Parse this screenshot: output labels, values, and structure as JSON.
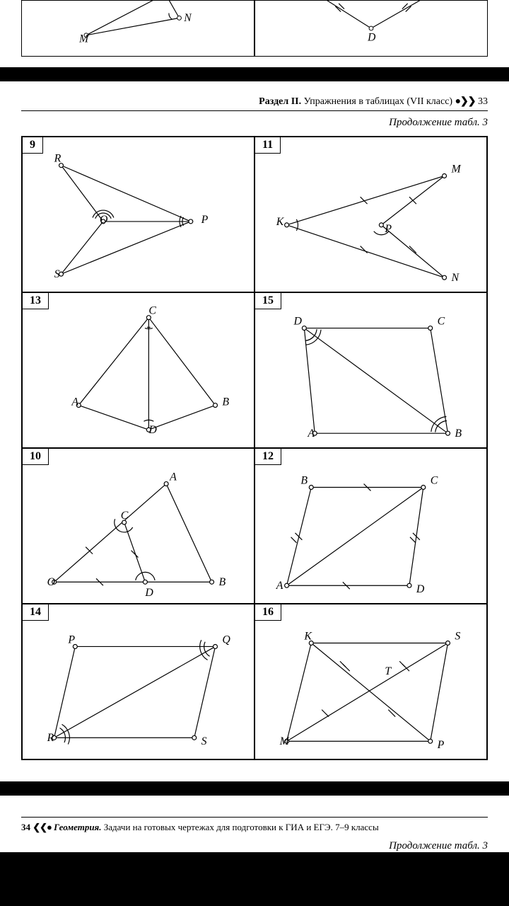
{
  "topFragment": {
    "left": {
      "labels": {
        "M": [
          80,
          55
        ],
        "N": [
          235,
          30
        ]
      }
    },
    "right": {
      "labels": {
        "D": [
          165,
          55
        ]
      }
    }
  },
  "header": {
    "section_bold": "Раздел II.",
    "section_rest": " Упражнения в таблицах (VII класс) ",
    "dots": "●❯❯",
    "page": "33"
  },
  "subheader": "Продолжение табл. 3",
  "cells": [
    {
      "num": "9",
      "labels": {
        "R": [
          45,
          35
        ],
        "O": [
          110,
          122
        ],
        "P": [
          255,
          122
        ],
        "S": [
          45,
          200
        ]
      },
      "lines": [
        [
          55,
          40,
          240,
          120
        ],
        [
          240,
          120,
          55,
          195
        ],
        [
          55,
          40,
          115,
          120
        ],
        [
          115,
          120,
          55,
          195
        ],
        [
          115,
          120,
          240,
          120
        ]
      ],
      "arcs": [
        [
          115,
          120,
          12,
          200,
          340
        ],
        [
          115,
          120,
          16,
          200,
          340
        ],
        [
          240,
          120,
          12,
          150,
          210
        ],
        [
          240,
          120,
          16,
          150,
          210
        ]
      ]
    },
    {
      "num": "13",
      "labels": {
        "C": [
          180,
          30
        ],
        "A": [
          70,
          160
        ],
        "B": [
          285,
          160
        ],
        "D": [
          180,
          200
        ]
      },
      "lines": [
        [
          180,
          35,
          80,
          160
        ],
        [
          80,
          160,
          180,
          195
        ],
        [
          180,
          195,
          275,
          160
        ],
        [
          275,
          160,
          180,
          35
        ],
        [
          180,
          35,
          180,
          195
        ]
      ],
      "arcs": [
        [
          180,
          35,
          16,
          70,
          110
        ],
        [
          180,
          195,
          14,
          240,
          300
        ],
        [
          180,
          35,
          14,
          80,
          96
        ],
        [
          180,
          35,
          14,
          84,
          100
        ]
      ]
    },
    {
      "num": "10",
      "labels": {
        "A": [
          210,
          45
        ],
        "C": [
          140,
          100
        ],
        "O": [
          35,
          195
        ],
        "D": [
          175,
          210
        ],
        "B": [
          280,
          195
        ]
      },
      "lines": [
        [
          45,
          190,
          205,
          50
        ],
        [
          205,
          50,
          270,
          190
        ],
        [
          45,
          190,
          270,
          190
        ],
        [
          145,
          105,
          175,
          190
        ]
      ],
      "arcs": [
        [
          145,
          105,
          14,
          30,
          200
        ],
        [
          175,
          190,
          14,
          190,
          350
        ]
      ],
      "ticks": [
        [
          95,
          145,
          10
        ],
        [
          110,
          190,
          10
        ],
        [
          160,
          150,
          10
        ]
      ]
    },
    {
      "num": "14",
      "labels": {
        "P": [
          65,
          55
        ],
        "Q": [
          285,
          55
        ],
        "R": [
          35,
          195
        ],
        "S": [
          255,
          200
        ]
      },
      "lines": [
        [
          75,
          60,
          275,
          60
        ],
        [
          275,
          60,
          245,
          190
        ],
        [
          245,
          190,
          45,
          190
        ],
        [
          45,
          190,
          75,
          60
        ],
        [
          45,
          190,
          275,
          60
        ]
      ],
      "arcs": [
        [
          45,
          190,
          16,
          300,
          25
        ],
        [
          45,
          190,
          22,
          300,
          25
        ],
        [
          275,
          60,
          16,
          120,
          205
        ],
        [
          275,
          60,
          22,
          120,
          205
        ]
      ]
    },
    {
      "num": "11",
      "labels": {
        "K": [
          30,
          125
        ],
        "M": [
          280,
          50
        ],
        "P": [
          185,
          135
        ],
        "N": [
          280,
          205
        ]
      },
      "lines": [
        [
          45,
          125,
          270,
          55
        ],
        [
          45,
          125,
          270,
          200
        ],
        [
          270,
          55,
          180,
          125
        ],
        [
          180,
          125,
          270,
          200
        ]
      ],
      "arcs": [
        [
          45,
          125,
          16,
          330,
          30
        ],
        [
          180,
          125,
          14,
          40,
          140
        ]
      ],
      "ticks": [
        [
          155,
          90,
          10
        ],
        [
          155,
          160,
          10
        ],
        [
          225,
          90,
          10
        ],
        [
          225,
          160,
          10
        ]
      ]
    },
    {
      "num": "15",
      "labels": {
        "D": [
          55,
          45
        ],
        "C": [
          260,
          45
        ],
        "A": [
          75,
          205
        ],
        "B": [
          285,
          205
        ]
      },
      "lines": [
        [
          70,
          50,
          250,
          50
        ],
        [
          250,
          50,
          275,
          200
        ],
        [
          275,
          200,
          85,
          200
        ],
        [
          85,
          200,
          70,
          50
        ],
        [
          70,
          50,
          275,
          200
        ]
      ],
      "arcs": [
        [
          70,
          50,
          18,
          5,
          85
        ],
        [
          70,
          50,
          24,
          5,
          85
        ],
        [
          70,
          50,
          18,
          28,
          85
        ],
        [
          275,
          200,
          18,
          185,
          265
        ],
        [
          275,
          200,
          24,
          185,
          265
        ],
        [
          275,
          200,
          18,
          210,
          265
        ]
      ]
    },
    {
      "num": "12",
      "labels": {
        "B": [
          65,
          50
        ],
        "C": [
          250,
          50
        ],
        "A": [
          30,
          200
        ],
        "D": [
          230,
          205
        ]
      },
      "lines": [
        [
          80,
          55,
          240,
          55
        ],
        [
          240,
          55,
          220,
          195
        ],
        [
          220,
          195,
          45,
          195
        ],
        [
          45,
          195,
          80,
          55
        ],
        [
          45,
          195,
          240,
          55
        ]
      ],
      "ticks": [
        [
          160,
          55,
          10
        ],
        [
          130,
          195,
          10
        ],
        [
          62,
          125,
          10
        ],
        [
          230,
          125,
          10
        ],
        [
          55,
          130,
          8
        ],
        [
          225,
          130,
          8
        ]
      ]
    },
    {
      "num": "16",
      "labels": {
        "K": [
          70,
          50
        ],
        "S": [
          285,
          50
        ],
        "T": [
          185,
          100
        ],
        "M": [
          35,
          200
        ],
        "P": [
          260,
          205
        ]
      },
      "lines": [
        [
          80,
          55,
          275,
          55
        ],
        [
          275,
          55,
          250,
          195
        ],
        [
          250,
          195,
          45,
          195
        ],
        [
          45,
          195,
          80,
          55
        ],
        [
          80,
          55,
          250,
          195
        ],
        [
          45,
          195,
          275,
          55
        ]
      ],
      "ticks": [
        [
          130,
          90,
          10
        ],
        [
          215,
          90,
          10
        ],
        [
          100,
          155,
          10
        ],
        [
          195,
          155,
          10
        ],
        [
          125,
          85,
          8
        ],
        [
          210,
          85,
          8
        ]
      ]
    }
  ],
  "footer": {
    "page": "34",
    "dots": "❮❮●",
    "title": "Геометрия.",
    "rest": " Задачи на готовых чертежах для подготовки к ГИА и ЕГЭ. 7–9 классы"
  },
  "bottomSubheader": "Продолжение табл. 3",
  "style": {
    "stroke": "#000",
    "stroke_width": 1.2,
    "point_r": 3,
    "point_fill": "#fff"
  }
}
